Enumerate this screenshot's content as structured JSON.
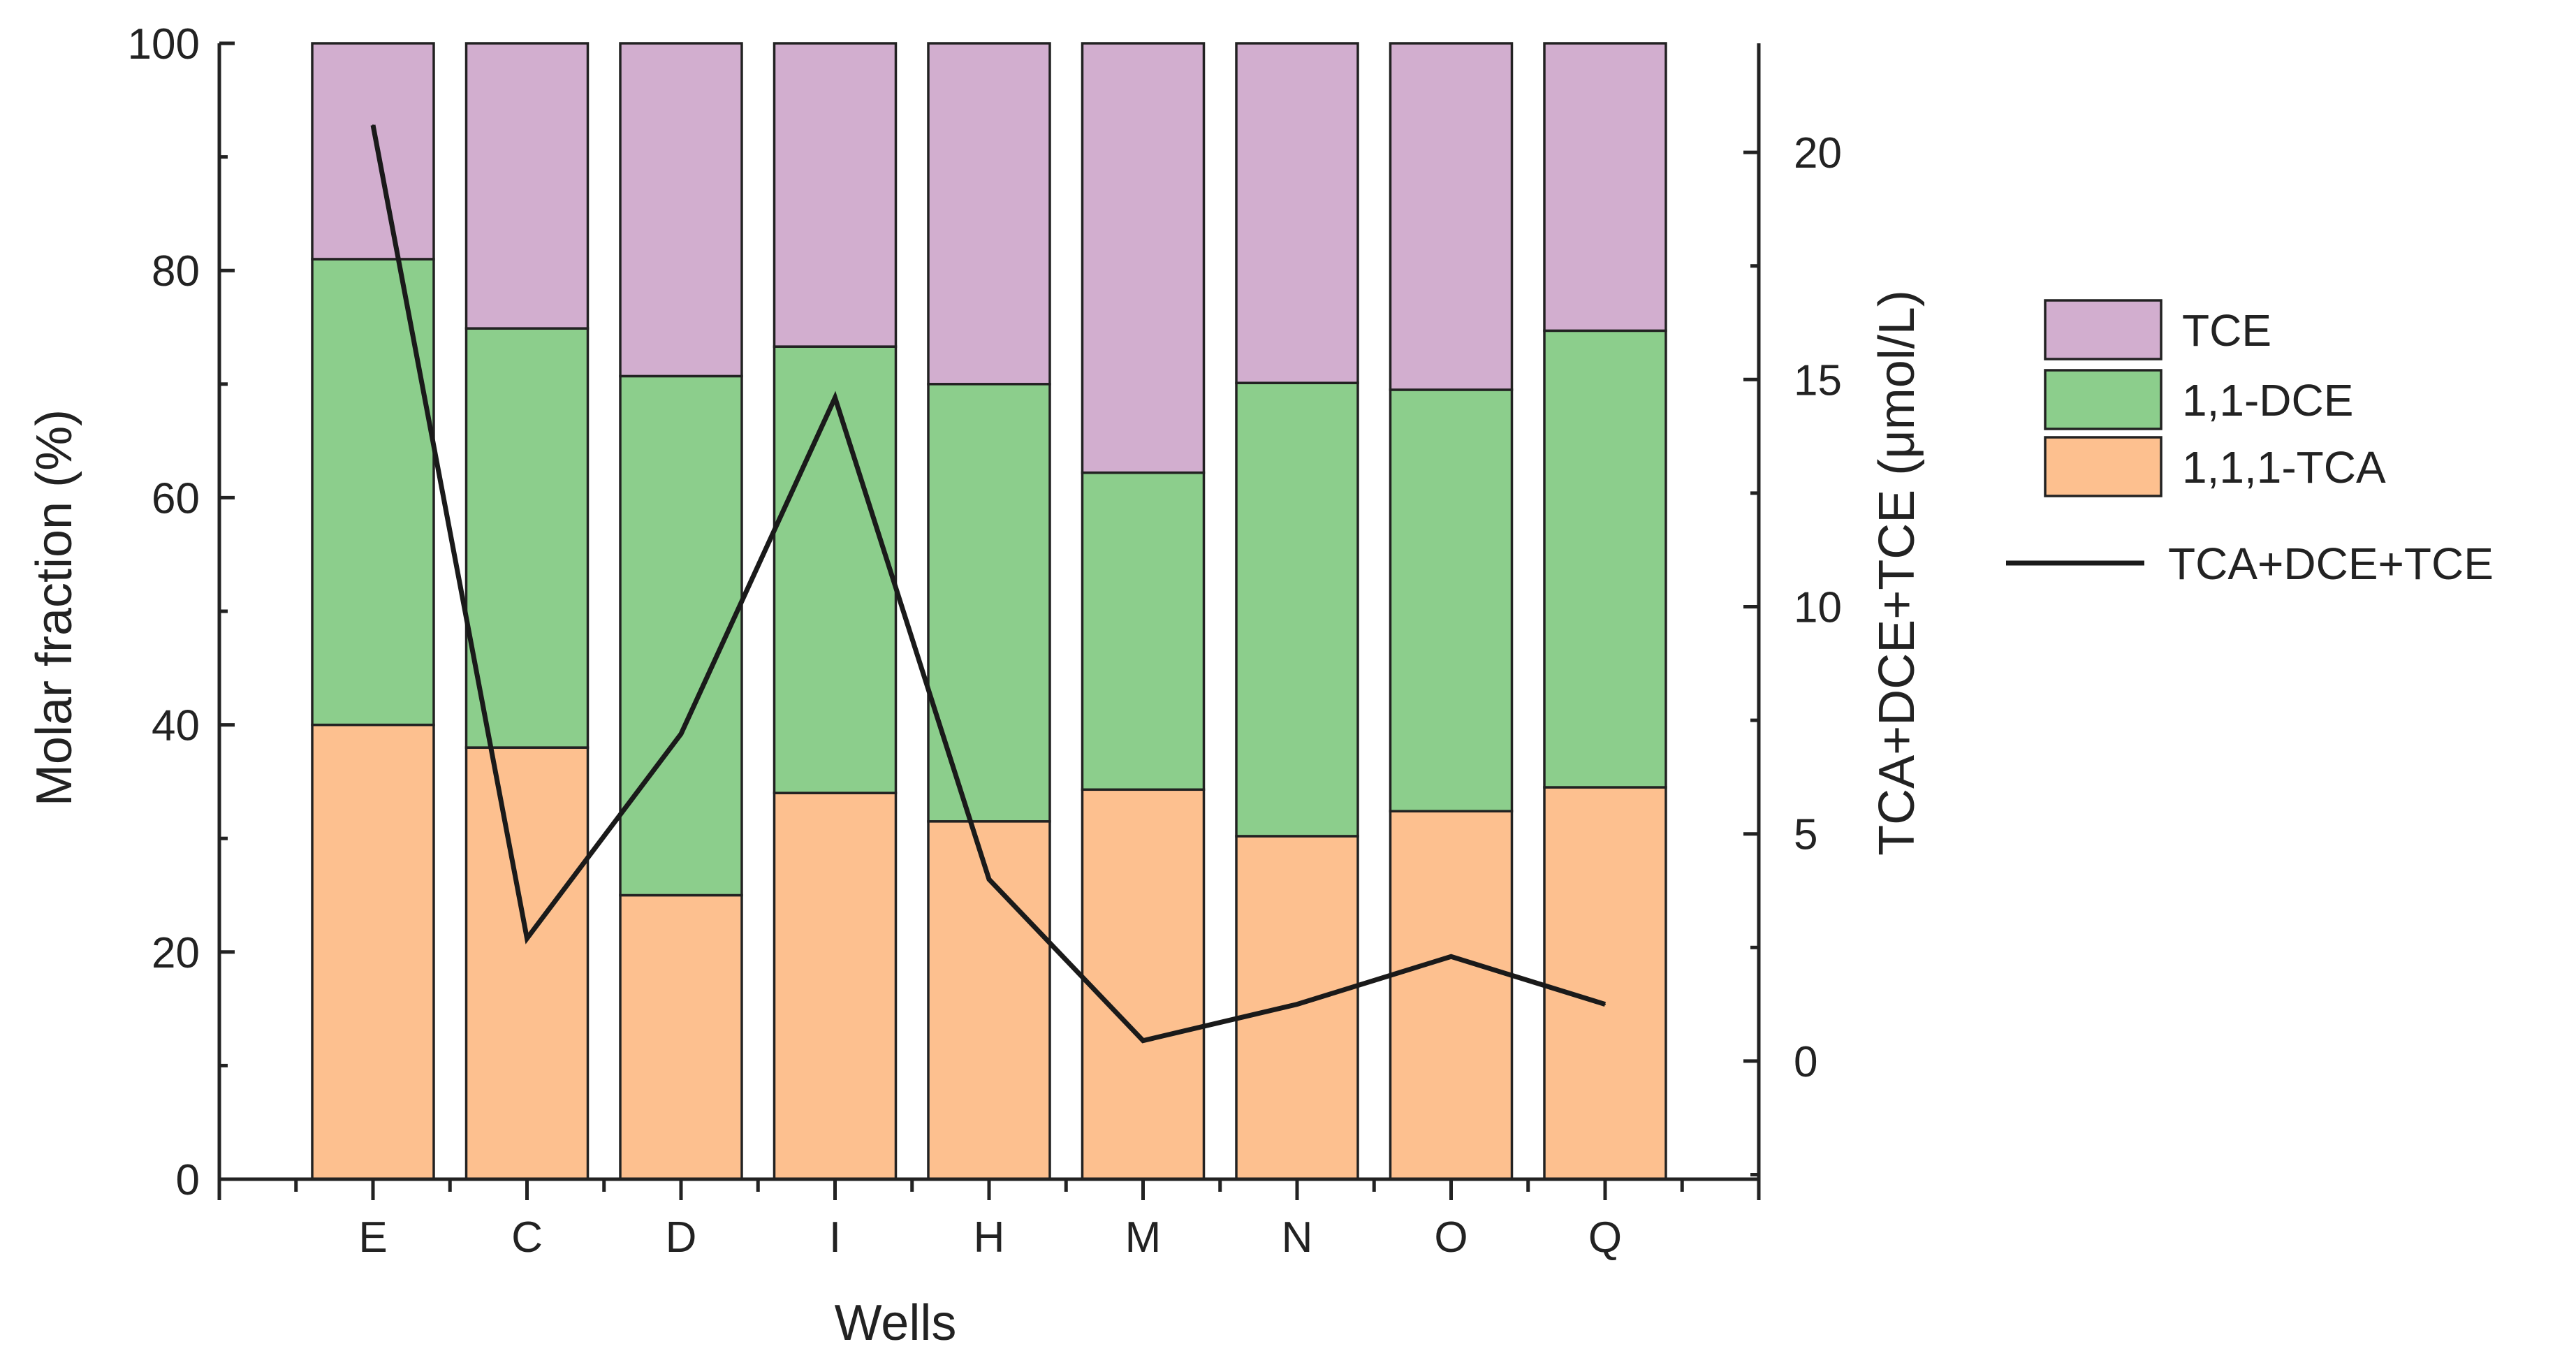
{
  "chart_data": {
    "type": "bar",
    "stacked": true,
    "categories": [
      "E",
      "C",
      "D",
      "I",
      "H",
      "M",
      "N",
      "O",
      "Q"
    ],
    "xlabel": "Wells",
    "ylabel": "Molar fraction (%)",
    "ylim": [
      0,
      100
    ],
    "yticks": [
      "0",
      "20",
      "40",
      "60",
      "80",
      "100"
    ],
    "series": [
      {
        "name": "1,1,1-TCA",
        "color": "#FDC08F",
        "values": [
          40,
          38,
          25,
          34,
          31.5,
          34.3,
          30.2,
          32.4,
          34.5
        ]
      },
      {
        "name": "1,1-DCE",
        "color": "#8CCE8C",
        "values": [
          41,
          36.9,
          45.7,
          39.3,
          38.5,
          27.9,
          39.9,
          37.1,
          40.2
        ]
      },
      {
        "name": "TCE",
        "color": "#D2AECF",
        "values": [
          19,
          25.1,
          29.3,
          26.7,
          30,
          37.8,
          29.9,
          30.5,
          25.3
        ]
      }
    ],
    "line_series": {
      "name": "TCA+DCE+TCE",
      "color": "#1a1a1a",
      "axis": "right",
      "values": [
        20.6,
        2.7,
        7.2,
        14.6,
        4,
        0.45,
        1.25,
        2.3,
        1.25
      ]
    },
    "y2label": "TCA+DCE+TCE  (μmol/L)",
    "y2lim": [
      -2.6,
      22.4
    ],
    "y2ticks": [
      "0",
      "5",
      "10",
      "15",
      "20"
    ],
    "legend": [
      {
        "label": "TCE",
        "kind": "box",
        "color": "#D2AECF"
      },
      {
        "label": "1,1-DCE",
        "kind": "box",
        "color": "#8CCE8C"
      },
      {
        "label": "1,1,1-TCA",
        "kind": "box",
        "color": "#FDC08F"
      },
      {
        "label": "TCA+DCE+TCE",
        "kind": "line",
        "color": "#1a1a1a"
      }
    ],
    "legend_position": "right"
  }
}
